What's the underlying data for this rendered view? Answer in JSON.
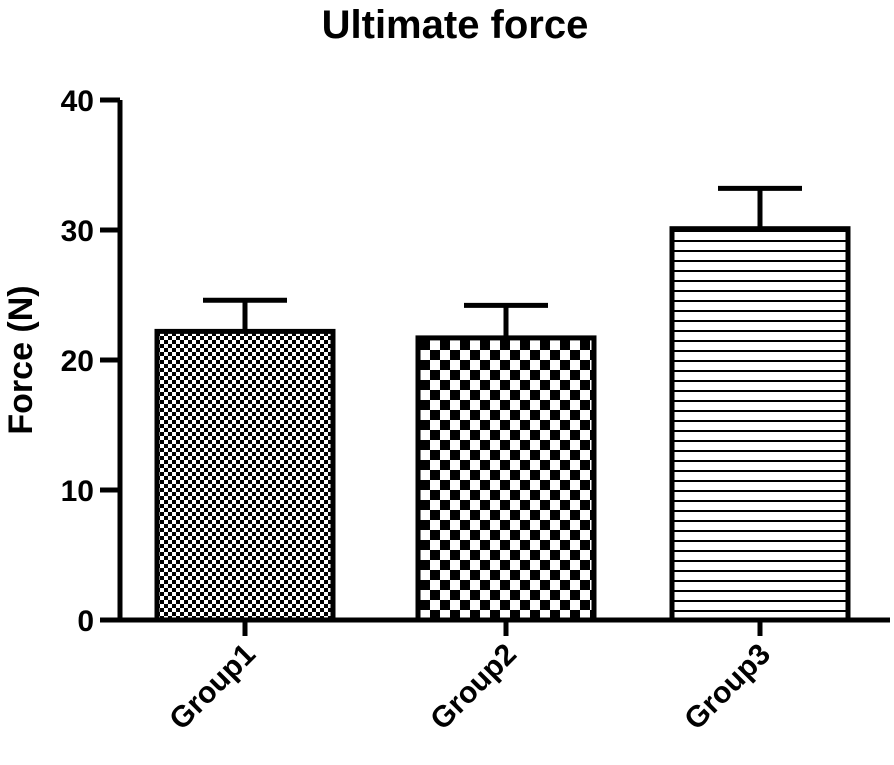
{
  "chart_data": {
    "type": "bar",
    "title": "Ultimate force",
    "xlabel": "",
    "ylabel": "Force (N)",
    "ylim": [
      0,
      40
    ],
    "yticks": [
      0,
      10,
      20,
      30,
      40
    ],
    "categories": [
      "Group1",
      "Group2",
      "Group3"
    ],
    "values": [
      22.2,
      21.7,
      30.1
    ],
    "error_upper": [
      2.4,
      2.5,
      3.1
    ],
    "patterns": [
      "fine-checker",
      "coarse-checker",
      "horizontal-stripes"
    ],
    "colors": {
      "bar_fill": "#ffffff",
      "pattern": "#000000",
      "axis": "#000000"
    },
    "grid": false,
    "legend": "none"
  }
}
